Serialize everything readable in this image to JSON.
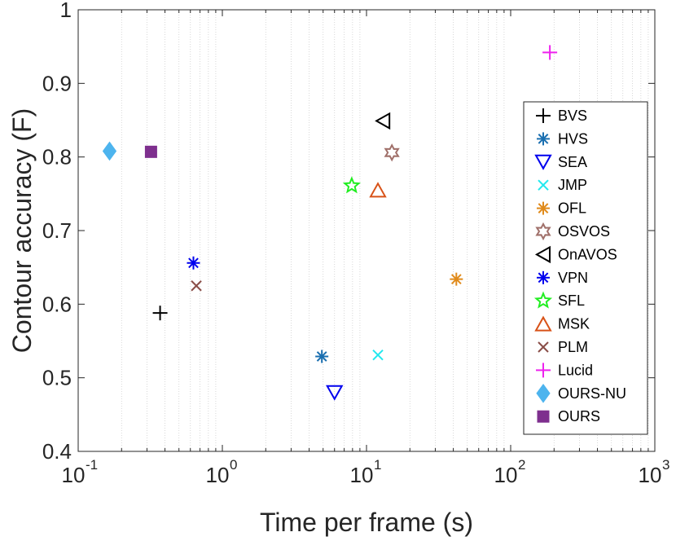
{
  "chart_data": {
    "type": "scatter",
    "title": "",
    "xlabel": "Time per frame (s)",
    "ylabel": "Contour accuracy (F)",
    "xscale": "log",
    "xlim": [
      0.1,
      1000
    ],
    "ylim": [
      0.4,
      1.0
    ],
    "grid": "minor-x-dotted",
    "legend_position": "right",
    "x_ticks": [
      {
        "base": "10",
        "exp": "-1",
        "value": 0.1
      },
      {
        "base": "10",
        "exp": "0",
        "value": 1
      },
      {
        "base": "10",
        "exp": "1",
        "value": 10
      },
      {
        "base": "10",
        "exp": "2",
        "value": 100
      },
      {
        "base": "10",
        "exp": "3",
        "value": 1000
      }
    ],
    "y_ticks": [
      "0.4",
      "0.5",
      "0.6",
      "0.7",
      "0.8",
      "0.9",
      "1"
    ],
    "series": [
      {
        "name": "BVS",
        "x": 0.37,
        "y": 0.588,
        "marker": "plus",
        "color": "#000000"
      },
      {
        "name": "HVS",
        "x": 4.9,
        "y": 0.529,
        "marker": "asterisk",
        "color": "#1a6fb0"
      },
      {
        "name": "SEA",
        "x": 6.0,
        "y": 0.48,
        "marker": "triangle-down",
        "color": "#0000ee"
      },
      {
        "name": "JMP",
        "x": 12.0,
        "y": 0.531,
        "marker": "x",
        "color": "#22e8ee"
      },
      {
        "name": "OFL",
        "x": 42.0,
        "y": 0.634,
        "marker": "asterisk",
        "color": "#e08a1a"
      },
      {
        "name": "OSVOS",
        "x": 15.0,
        "y": 0.806,
        "marker": "hexagram",
        "color": "#a0706a"
      },
      {
        "name": "OnAVOS",
        "x": 13.0,
        "y": 0.849,
        "marker": "triangle-left",
        "color": "#000000"
      },
      {
        "name": "VPN",
        "x": 0.63,
        "y": 0.656,
        "marker": "asterisk",
        "color": "#0000ee"
      },
      {
        "name": "SFL",
        "x": 7.9,
        "y": 0.761,
        "marker": "pentagram",
        "color": "#22ee22"
      },
      {
        "name": "MSK",
        "x": 12.0,
        "y": 0.755,
        "marker": "triangle-up",
        "color": "#d85218"
      },
      {
        "name": "PLM",
        "x": 0.66,
        "y": 0.625,
        "marker": "x",
        "color": "#8a4e48"
      },
      {
        "name": "Lucid",
        "x": 187.0,
        "y": 0.942,
        "marker": "plus",
        "color": "#ee22ee"
      },
      {
        "name": "OURS-NU",
        "x": 0.165,
        "y": 0.808,
        "marker": "diamond",
        "color": "#4db4ee"
      },
      {
        "name": "OURS",
        "x": 0.32,
        "y": 0.807,
        "marker": "square",
        "color": "#7e2f8e"
      }
    ]
  }
}
